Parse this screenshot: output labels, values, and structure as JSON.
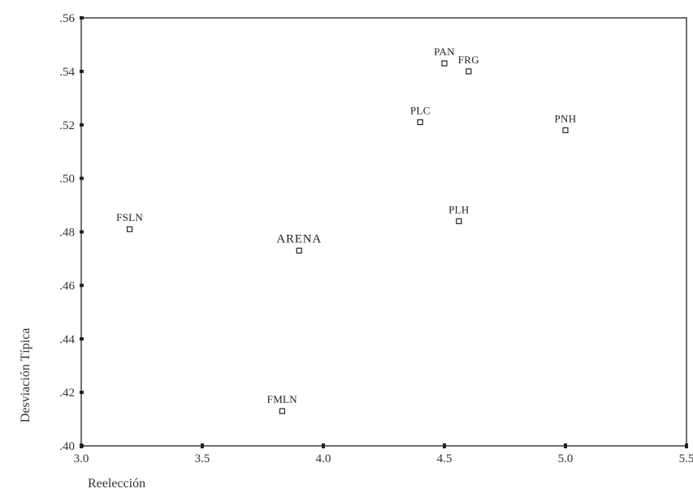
{
  "chart_data": {
    "type": "scatter",
    "title": "",
    "xlabel": "Reelección",
    "ylabel": "Desviación Típica",
    "xlim": [
      3.0,
      5.5
    ],
    "ylim": [
      0.4,
      0.56
    ],
    "x_ticks": [
      "3.0",
      "3.5",
      "4.0",
      "4.5",
      "5.0",
      "5.5"
    ],
    "y_ticks": [
      ".40",
      ".42",
      ".44",
      ".46",
      ".48",
      ".50",
      ".52",
      ".54",
      ".56"
    ],
    "grid": false,
    "marker": "hollow-square",
    "points": [
      {
        "label": "PAN",
        "x": 4.5,
        "y": 0.543
      },
      {
        "label": "FRG",
        "x": 4.6,
        "y": 0.54
      },
      {
        "label": "PLC",
        "x": 4.4,
        "y": 0.521
      },
      {
        "label": "PNH",
        "x": 5.0,
        "y": 0.518
      },
      {
        "label": "FSLN",
        "x": 3.2,
        "y": 0.481
      },
      {
        "label": "PLH",
        "x": 4.56,
        "y": 0.484
      },
      {
        "label": "ARENA",
        "x": 3.9,
        "y": 0.473
      },
      {
        "label": "FMLN",
        "x": 3.83,
        "y": 0.413
      }
    ],
    "colors": {
      "axis": "#222222",
      "marker": "#222222",
      "background": "#ffffff"
    }
  }
}
